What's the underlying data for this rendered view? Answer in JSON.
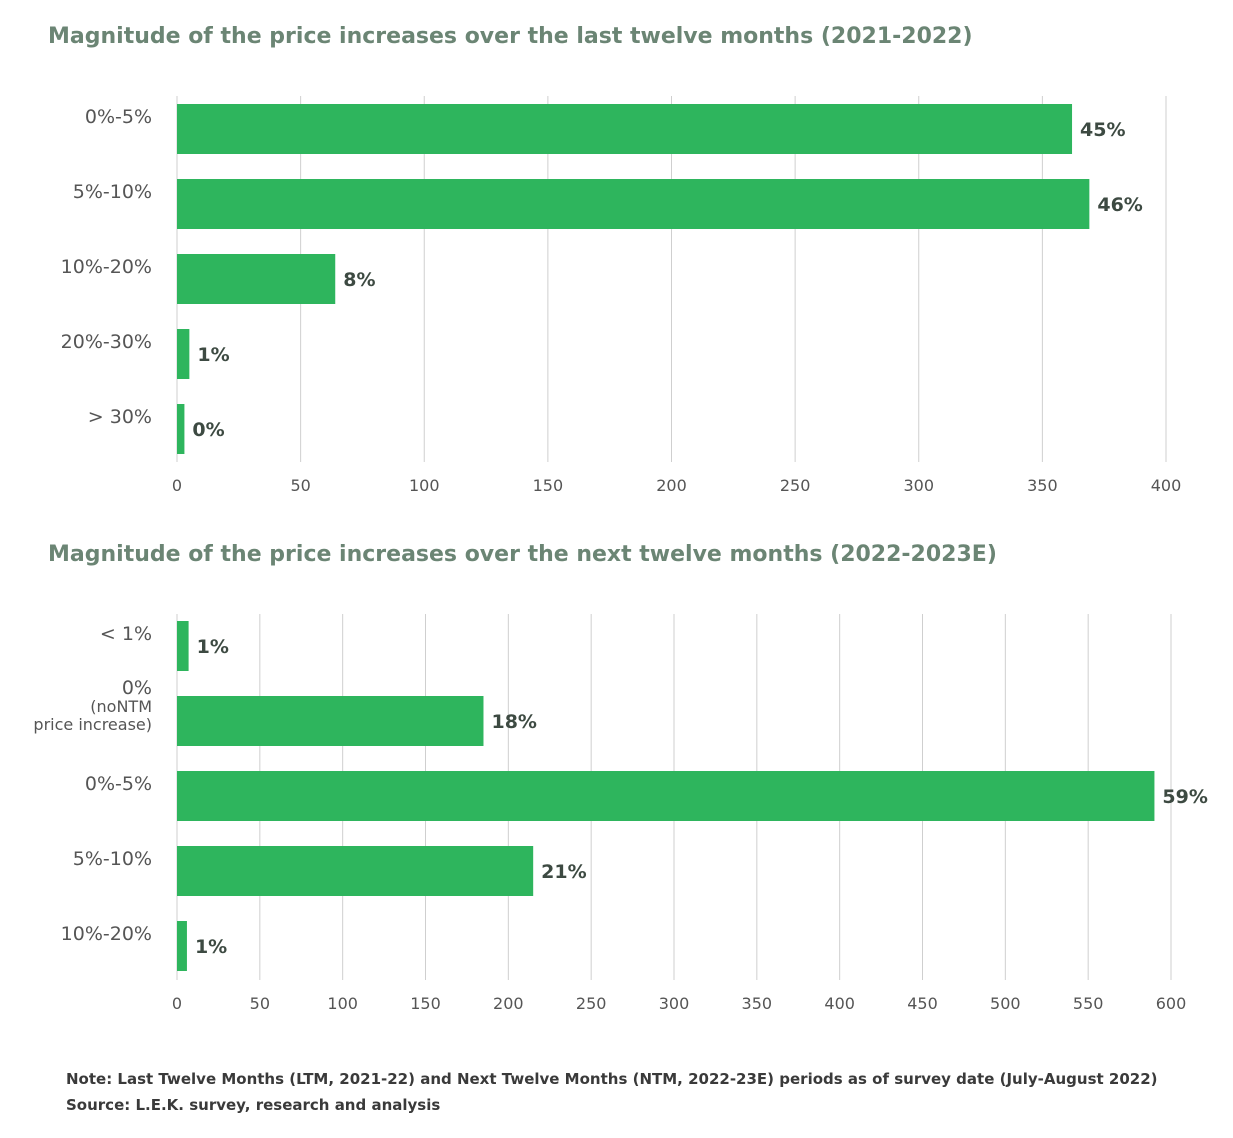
{
  "chart_data": [
    {
      "type": "bar",
      "orientation": "horizontal",
      "title": "Magnitude of the price increases over the last twelve months (2021-2022)",
      "categories": [
        "0%-5%",
        "5%-10%",
        "10%-20%",
        "20%-30%",
        "> 30%"
      ],
      "values": [
        362,
        369,
        64,
        5,
        3
      ],
      "data_labels": [
        "45%",
        "46%",
        "8%",
        "1%",
        "0%"
      ],
      "xlim": [
        0,
        400
      ],
      "xticks": [
        0,
        50,
        100,
        150,
        200,
        250,
        300,
        350,
        400
      ],
      "grid": true,
      "bar_color": "#2eb55d"
    },
    {
      "type": "bar",
      "orientation": "horizontal",
      "title": "Magnitude of the price increases over the next twelve months (2022-2023E)",
      "categories": [
        "< 1%",
        "0%\n(noNTM\nprice increase)",
        "0%-5%",
        "5%-10%",
        "10%-20%"
      ],
      "values": [
        7,
        185,
        590,
        215,
        6
      ],
      "data_labels": [
        "1%",
        "18%",
        "59%",
        "21%",
        "1%"
      ],
      "xlim": [
        0,
        600
      ],
      "xticks": [
        0,
        50,
        100,
        150,
        200,
        250,
        300,
        350,
        400,
        450,
        500,
        550,
        600
      ],
      "grid": true,
      "bar_color": "#2eb55d"
    }
  ],
  "footer": {
    "note": "Note: Last Twelve Months (LTM, 2021-22) and Next Twelve Months (NTM, 2022-23E) periods as of survey date (July-August 2022)",
    "source": "Source: L.E.K. survey, research and analysis"
  }
}
